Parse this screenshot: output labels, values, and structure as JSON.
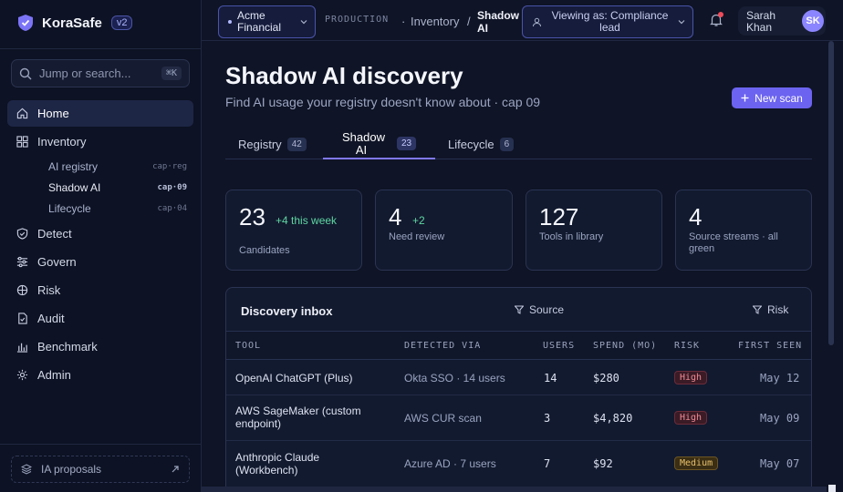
{
  "brand": {
    "name": "KoraSafe",
    "version": "v2"
  },
  "search": {
    "placeholder": "Jump or search...",
    "shortcut": "⌘K"
  },
  "sidebar": {
    "items": [
      {
        "label": "Home",
        "icon": "home-icon",
        "active": true
      },
      {
        "label": "Inventory",
        "icon": "grid-icon"
      },
      {
        "label": "Detect",
        "icon": "shield-check-icon"
      },
      {
        "label": "Govern",
        "icon": "sliders-icon"
      },
      {
        "label": "Risk",
        "icon": "globe-icon"
      },
      {
        "label": "Audit",
        "icon": "document-check-icon"
      },
      {
        "label": "Benchmark",
        "icon": "bar-chart-icon"
      },
      {
        "label": "Admin",
        "icon": "gear-icon"
      }
    ],
    "inventory_sub": [
      {
        "label": "AI registry",
        "code": "cap·reg"
      },
      {
        "label": "Shadow AI",
        "code": "cap·09",
        "active": true
      },
      {
        "label": "Lifecycle",
        "code": "cap·04"
      }
    ],
    "ia_proposals": "IA proposals"
  },
  "topbar": {
    "tenant": "Acme Financial",
    "environment": "PRODUCTION",
    "crumbs": [
      "Inventory",
      "Shadow AI"
    ],
    "viewing_as": "Viewing as: Compliance lead",
    "user_name": "Sarah Khan",
    "user_initials": "SK"
  },
  "page": {
    "title": "Shadow AI discovery",
    "subtitle": "Find AI usage your registry doesn't know about · cap 09",
    "new_scan": "New scan"
  },
  "tabs": [
    {
      "label": "Registry",
      "count": "42"
    },
    {
      "label": "Shadow AI",
      "count": "23",
      "active": true
    },
    {
      "label": "Lifecycle",
      "count": "6"
    }
  ],
  "stats": [
    {
      "value": "23",
      "delta": "+4 this week",
      "caption": "Candidates"
    },
    {
      "value": "4",
      "delta": "+2",
      "caption": "Need review"
    },
    {
      "value": "127",
      "delta": "",
      "caption": "Tools in library"
    },
    {
      "value": "4",
      "delta": "",
      "caption": "Source streams · all green"
    }
  ],
  "inbox": {
    "title": "Discovery inbox",
    "filters": [
      "Source",
      "Risk"
    ],
    "columns": [
      "TOOL",
      "DETECTED VIA",
      "USERS",
      "SPEND (MO)",
      "RISK",
      "FIRST SEEN"
    ],
    "rows": [
      {
        "tool": "OpenAI ChatGPT (Plus)",
        "via": "Okta SSO · 14 users",
        "users": "14",
        "spend": "$280",
        "risk": "High",
        "seen": "May 12"
      },
      {
        "tool": "AWS SageMaker (custom endpoint)",
        "via": "AWS CUR scan",
        "users": "3",
        "spend": "$4,820",
        "risk": "High",
        "seen": "May 09"
      },
      {
        "tool": "Anthropic Claude (Workbench)",
        "via": "Azure AD · 7 users",
        "users": "7",
        "spend": "$92",
        "risk": "Medium",
        "seen": "May 07"
      }
    ]
  },
  "colors": {
    "accent": "#6c63f0",
    "background": "#0f1426",
    "positive": "#5fd6a2",
    "high": "#f08a94",
    "medium": "#e8c06a"
  }
}
